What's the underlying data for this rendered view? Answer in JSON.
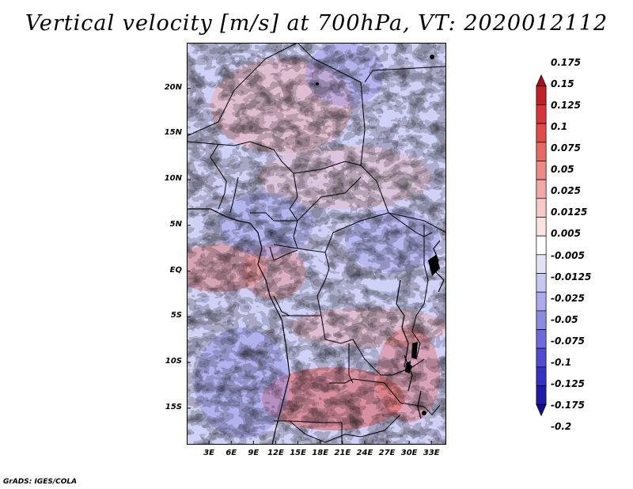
{
  "title": "Vertical velocity [m/s] at 700hPa, VT: 2020012112",
  "credit": "GrADS: IGES/COLA",
  "lat_labels": [
    "20N",
    "15N",
    "10N",
    "5N",
    "EQ",
    "5S",
    "10S",
    "15S"
  ],
  "lon_labels": [
    "3E",
    "6E",
    "9E",
    "12E",
    "15E",
    "18E",
    "21E",
    "24E",
    "27E",
    "30E",
    "33E"
  ],
  "colorbar": {
    "labels": [
      "0.175",
      "0.15",
      "0.125",
      "0.1",
      "0.075",
      "0.05",
      "0.025",
      "0.0125",
      "0.005",
      "-0.005",
      "-0.0125",
      "-0.025",
      "-0.05",
      "-0.075",
      "-0.1",
      "-0.125",
      "-0.175",
      "-0.2"
    ],
    "colors": [
      "#a50e1b",
      "#c21f28",
      "#d9333b",
      "#e14c4b",
      "#e66b66",
      "#ec8a85",
      "#f2a9a6",
      "#f7c9c7",
      "#fbe3e2",
      "#ffffff",
      "#e3e3f8",
      "#c7c7f2",
      "#aaa9ec",
      "#8c8be4",
      "#6d6bdc",
      "#4f4cd2",
      "#3432c4",
      "#1f1aa8",
      "#120f8c"
    ]
  },
  "map": {
    "lat_min": -19,
    "lat_max": 25,
    "lon_min": 0,
    "lon_max": 35
  }
}
